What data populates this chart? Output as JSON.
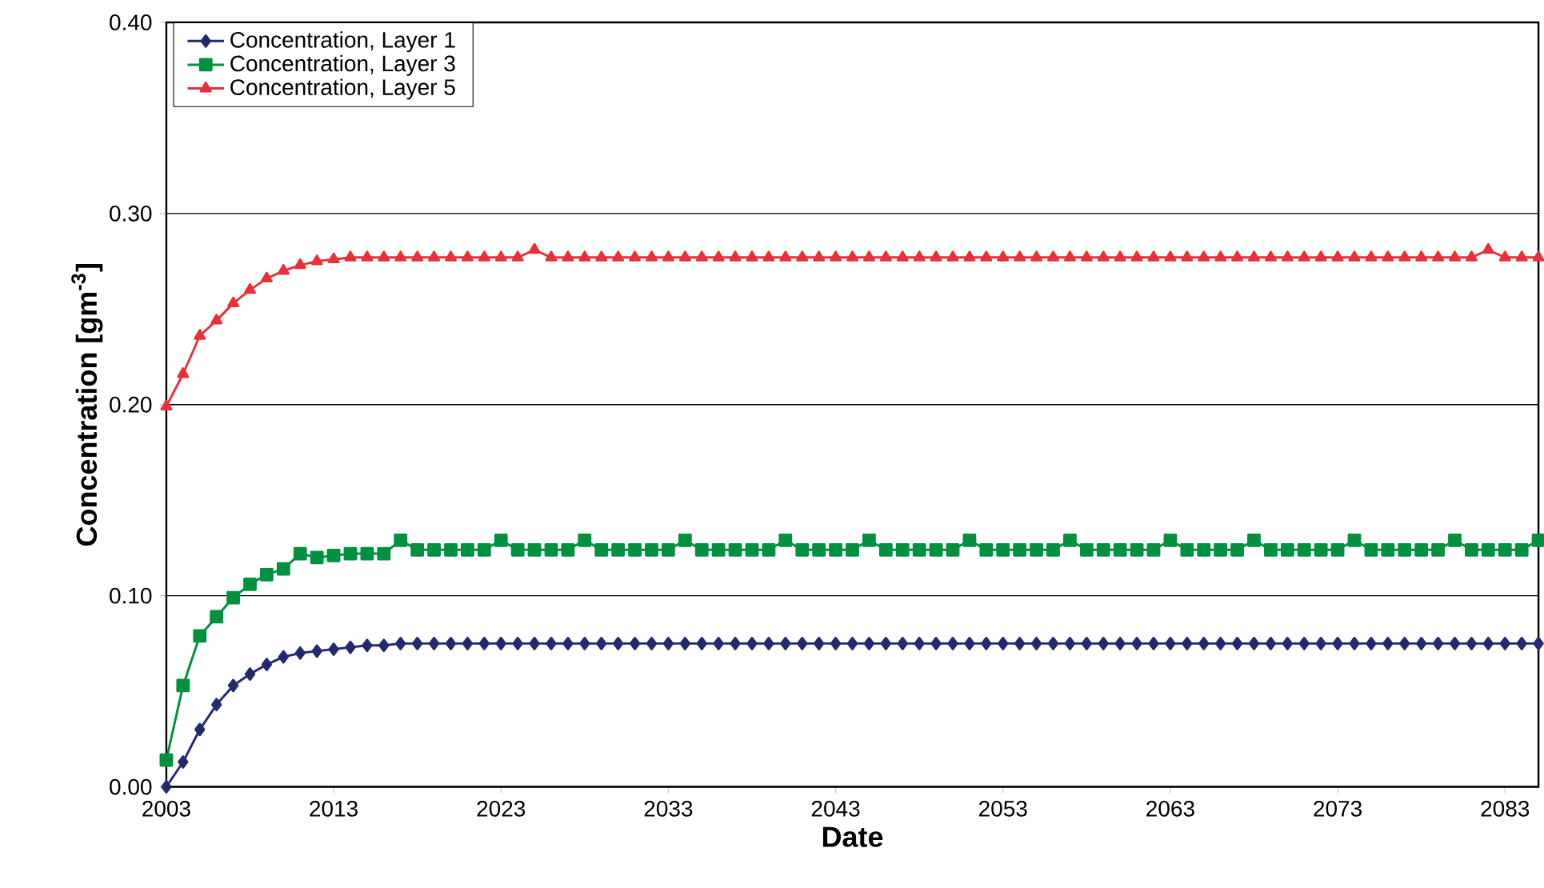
{
  "chart_data": {
    "type": "line",
    "xlabel": "Date",
    "ylabel": "Concentration [gm$^{-3}$]",
    "x": [
      2003,
      2004,
      2005,
      2006,
      2007,
      2008,
      2009,
      2010,
      2011,
      2012,
      2013,
      2014,
      2015,
      2016,
      2017,
      2018,
      2019,
      2020,
      2021,
      2022,
      2023,
      2024,
      2025,
      2026,
      2027,
      2028,
      2029,
      2030,
      2031,
      2032,
      2033,
      2034,
      2035,
      2036,
      2037,
      2038,
      2039,
      2040,
      2041,
      2042,
      2043,
      2044,
      2045,
      2046,
      2047,
      2048,
      2049,
      2050,
      2051,
      2052,
      2053,
      2054,
      2055,
      2056,
      2057,
      2058,
      2059,
      2060,
      2061,
      2062,
      2063,
      2064,
      2065,
      2066,
      2067,
      2068,
      2069,
      2070,
      2071,
      2072,
      2073,
      2074,
      2075,
      2076,
      2077,
      2078,
      2079,
      2080,
      2081,
      2082,
      2083,
      2084,
      2085
    ],
    "series": [
      {
        "name": "Concentration, Layer 1",
        "color": "#222a6c",
        "marker": "diamond",
        "values": [
          0,
          0.013,
          0.03,
          0.043,
          0.053,
          0.059,
          0.064,
          0.068,
          0.07,
          0.071,
          0.072,
          0.073,
          0.074,
          0.074,
          0.075,
          0.075,
          0.075,
          0.075,
          0.075,
          0.075,
          0.075,
          0.075,
          0.075,
          0.075,
          0.075,
          0.075,
          0.075,
          0.075,
          0.075,
          0.075,
          0.075,
          0.075,
          0.075,
          0.075,
          0.075,
          0.075,
          0.075,
          0.075,
          0.075,
          0.075,
          0.075,
          0.075,
          0.075,
          0.075,
          0.075,
          0.075,
          0.075,
          0.075,
          0.075,
          0.075,
          0.075,
          0.075,
          0.075,
          0.075,
          0.075,
          0.075,
          0.075,
          0.075,
          0.075,
          0.075,
          0.075,
          0.075,
          0.075,
          0.075,
          0.075,
          0.075,
          0.075,
          0.075,
          0.075,
          0.075,
          0.075,
          0.075,
          0.075,
          0.075,
          0.075,
          0.075,
          0.075,
          0.075,
          0.075,
          0.075,
          0.075,
          0.075,
          0.075
        ]
      },
      {
        "name": "Concentration, Layer 3",
        "color": "#009040",
        "marker": "square",
        "values": [
          0.014,
          0.053,
          0.079,
          0.089,
          0.099,
          0.106,
          0.111,
          0.114,
          0.122,
          0.12,
          0.121,
          0.122,
          0.122,
          0.122,
          0.129,
          0.124,
          0.124,
          0.124,
          0.124,
          0.124,
          0.129,
          0.124,
          0.124,
          0.124,
          0.124,
          0.129,
          0.124,
          0.124,
          0.124,
          0.124,
          0.124,
          0.129,
          0.124,
          0.124,
          0.124,
          0.124,
          0.124,
          0.129,
          0.124,
          0.124,
          0.124,
          0.124,
          0.129,
          0.124,
          0.124,
          0.124,
          0.124,
          0.124,
          0.129,
          0.124,
          0.124,
          0.124,
          0.124,
          0.124,
          0.129,
          0.124,
          0.124,
          0.124,
          0.124,
          0.124,
          0.129,
          0.124,
          0.124,
          0.124,
          0.124,
          0.129,
          0.124,
          0.124,
          0.124,
          0.124,
          0.124,
          0.129,
          0.124,
          0.124,
          0.124,
          0.124,
          0.124,
          0.129,
          0.124,
          0.124,
          0.124,
          0.124,
          0.129
        ]
      },
      {
        "name": "Concentration, Layer 5",
        "color": "#e8303a",
        "marker": "triangle",
        "values": [
          0.199,
          0.216,
          0.236,
          0.244,
          0.253,
          0.26,
          0.266,
          0.27,
          0.273,
          0.275,
          0.276,
          0.277,
          0.277,
          0.277,
          0.277,
          0.277,
          0.277,
          0.277,
          0.277,
          0.277,
          0.277,
          0.277,
          0.281,
          0.277,
          0.277,
          0.277,
          0.277,
          0.277,
          0.277,
          0.277,
          0.277,
          0.277,
          0.277,
          0.277,
          0.277,
          0.277,
          0.277,
          0.277,
          0.277,
          0.277,
          0.277,
          0.277,
          0.277,
          0.277,
          0.277,
          0.277,
          0.277,
          0.277,
          0.277,
          0.277,
          0.277,
          0.277,
          0.277,
          0.277,
          0.277,
          0.277,
          0.277,
          0.277,
          0.277,
          0.277,
          0.277,
          0.277,
          0.277,
          0.277,
          0.277,
          0.277,
          0.277,
          0.277,
          0.277,
          0.277,
          0.277,
          0.277,
          0.277,
          0.277,
          0.277,
          0.277,
          0.277,
          0.277,
          0.277,
          0.281,
          0.277,
          0.277,
          0.277
        ]
      }
    ],
    "xlim": [
      2003,
      2085
    ],
    "ylim": [
      0,
      0.4
    ],
    "xticks": [
      2003,
      2013,
      2023,
      2033,
      2043,
      2053,
      2063,
      2073,
      2083
    ],
    "yticks": [
      {
        "value": 0,
        "label": "0.00"
      },
      {
        "value": 0.1,
        "label": "0.10"
      },
      {
        "value": 0.2,
        "label": "0.20"
      },
      {
        "value": 0.3,
        "label": "0.30"
      },
      {
        "value": 0.4,
        "label": "0.40"
      }
    ],
    "grid": "y",
    "legend": "top left",
    "line_style": "solid"
  }
}
